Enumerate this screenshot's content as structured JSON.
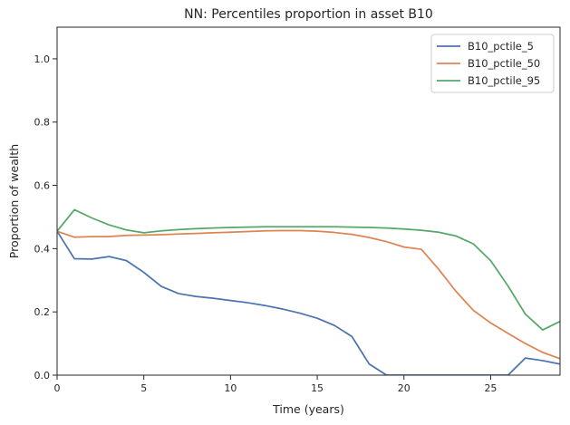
{
  "chart_data": {
    "type": "line",
    "title": "NN: Percentiles proportion in asset B10",
    "xlabel": "Time (years)",
    "ylabel": "Proportion of wealth",
    "xlim": [
      0,
      29
    ],
    "ylim": [
      0,
      1.1
    ],
    "xticks": [
      0,
      5,
      10,
      15,
      20,
      25
    ],
    "yticks": [
      0.0,
      0.2,
      0.4,
      0.6,
      0.8,
      1.0
    ],
    "ytick_labels": [
      "0.0",
      "0.2",
      "0.4",
      "0.6",
      "0.8",
      "1.0"
    ],
    "grid": false,
    "legend_position": "top-right",
    "x": [
      0,
      1,
      2,
      3,
      4,
      5,
      6,
      7,
      8,
      9,
      10,
      11,
      12,
      13,
      14,
      15,
      16,
      17,
      18,
      19,
      20,
      21,
      22,
      23,
      24,
      25,
      26,
      27,
      28,
      29
    ],
    "series": [
      {
        "name": "B10_pctile_5",
        "color": "#4c72b0",
        "values": [
          0.455,
          0.368,
          0.367,
          0.375,
          0.362,
          0.325,
          0.281,
          0.258,
          0.249,
          0.243,
          0.236,
          0.229,
          0.22,
          0.209,
          0.196,
          0.18,
          0.157,
          0.122,
          0.035,
          0.0,
          0.0,
          0.0,
          0.0,
          0.0,
          0.0,
          0.0,
          0.0,
          0.054,
          0.046,
          0.035
        ]
      },
      {
        "name": "B10_pctile_50",
        "color": "#dd8452",
        "values": [
          0.455,
          0.436,
          0.438,
          0.438,
          0.442,
          0.443,
          0.444,
          0.446,
          0.448,
          0.45,
          0.452,
          0.454,
          0.456,
          0.457,
          0.457,
          0.455,
          0.451,
          0.445,
          0.435,
          0.422,
          0.405,
          0.398,
          0.335,
          0.265,
          0.205,
          0.165,
          0.132,
          0.1,
          0.072,
          0.052
        ]
      },
      {
        "name": "B10_pctile_95",
        "color": "#55a868",
        "values": [
          0.455,
          0.523,
          0.497,
          0.475,
          0.459,
          0.45,
          0.456,
          0.46,
          0.463,
          0.465,
          0.467,
          0.468,
          0.469,
          0.469,
          0.469,
          0.469,
          0.469,
          0.468,
          0.467,
          0.465,
          0.462,
          0.458,
          0.452,
          0.44,
          0.415,
          0.362,
          0.282,
          0.193,
          0.143,
          0.17
        ]
      }
    ]
  }
}
